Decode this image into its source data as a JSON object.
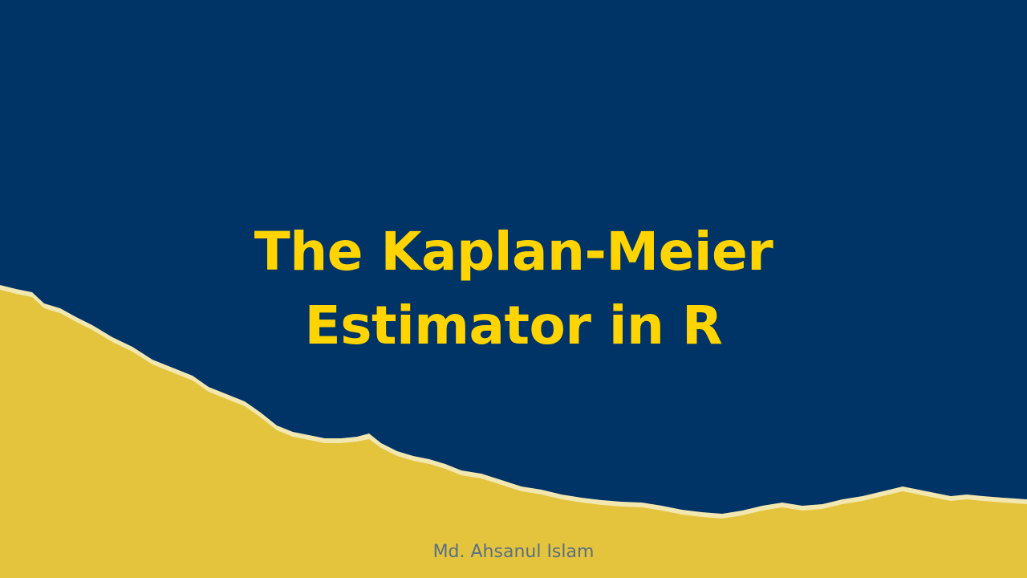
{
  "slide": {
    "title_line1": "The Kaplan-Meier",
    "title_line2": "Estimator in R",
    "author": "Md. Ahsanul Islam"
  },
  "colors": {
    "background_navy": "#003366",
    "paper_yellow": "#E3C43C",
    "title_yellow": "#FFD400",
    "paper_edge": "#F3E7B0",
    "author_text": "#5a6f86"
  }
}
